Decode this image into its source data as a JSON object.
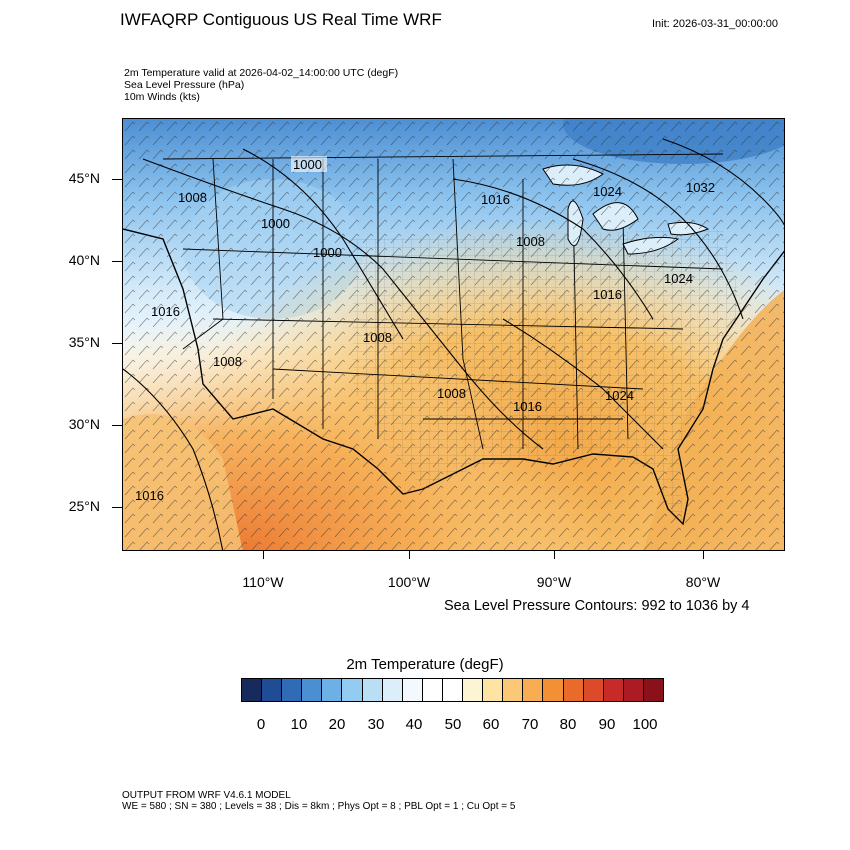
{
  "header": {
    "title": "IWFAQRP Contiguous US Real Time WRF",
    "init": "Init: 2026-03-31_00:00:00",
    "line1": "2m Temperature valid at 2026-04-02_14:00:00 UTC   (degF)",
    "line2": "Sea Level Pressure   (hPa)",
    "line3": "10m Winds   (kts)"
  },
  "map": {
    "lat_labels": [
      "45°N",
      "40°N",
      "35°N",
      "30°N",
      "25°N"
    ],
    "lon_labels": [
      "110°W",
      "100°W",
      "90°W",
      "80°W"
    ],
    "slp_labels": [
      "1000",
      "1008",
      "1000",
      "1000",
      "1016",
      "1024",
      "1032",
      "1008",
      "1024",
      "1016",
      "1016",
      "1008",
      "1008",
      "1008",
      "1016",
      "1024",
      "1016"
    ],
    "contour_note": "Sea Level Pressure Contours: 992 to 1036 by 4"
  },
  "colorbar": {
    "title": "2m Temperature  (degF)",
    "labels": [
      "0",
      "10",
      "20",
      "30",
      "40",
      "50",
      "60",
      "70",
      "80",
      "90",
      "100"
    ],
    "colors": [
      "#162b5c",
      "#1f4c94",
      "#2f6bb7",
      "#4a8fd2",
      "#6cb0e6",
      "#94cbf0",
      "#b9dff6",
      "#dbeefa",
      "#f3f9fd",
      "#ffffff",
      "#ffffff",
      "#fdf4d4",
      "#fde3a4",
      "#fbc878",
      "#f8ad52",
      "#f39035",
      "#ea6a2c",
      "#dc4a2a",
      "#c72a27",
      "#ac1b21",
      "#8a1119"
    ]
  },
  "footer": {
    "line1": "OUTPUT FROM WRF V4.6.1 MODEL",
    "line2": "WE = 580 ; SN = 380 ; Levels = 38 ; Dis = 8km ; Phys Opt = 8 ; PBL Opt = 1 ; Cu Opt = 5"
  }
}
